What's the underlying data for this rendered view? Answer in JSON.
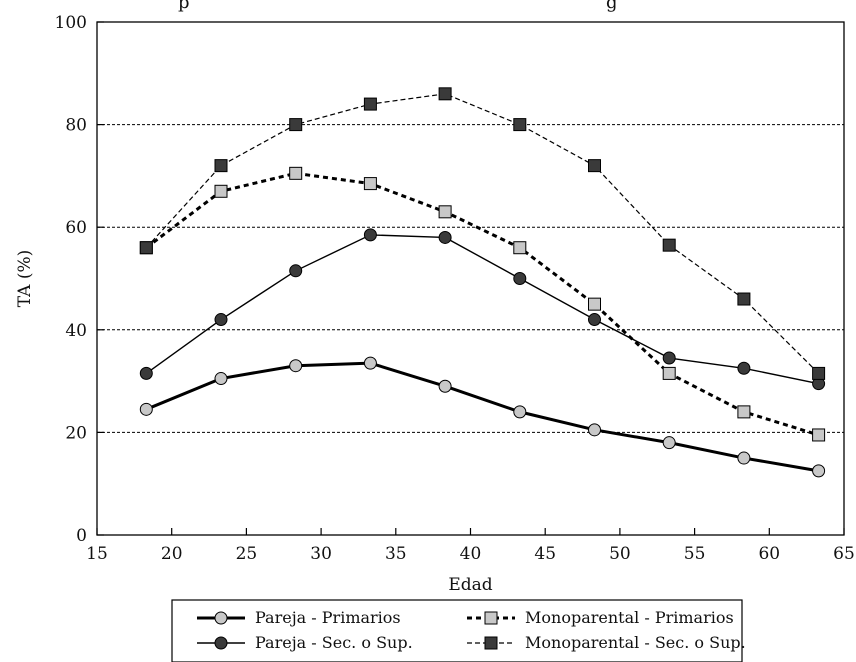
{
  "top_fragment": {
    "left": "p",
    "right": "g"
  },
  "colors": {
    "grid": "#000000",
    "dark_marker": "#3a3a3a",
    "light_marker": "#c8c8c8",
    "line": "#000000"
  },
  "chart_data": {
    "type": "line",
    "title": "",
    "xlabel": "Edad",
    "ylabel": "TA (%)",
    "xlim": [
      15,
      65
    ],
    "ylim": [
      0,
      100
    ],
    "xticks": [
      15,
      20,
      25,
      30,
      35,
      40,
      45,
      50,
      55,
      60,
      65
    ],
    "yticks": [
      0,
      20,
      40,
      60,
      80,
      100
    ],
    "x_tick_labels": [
      "15",
      "20",
      "25",
      "30",
      "35",
      "40",
      "45",
      "50",
      "55",
      "60",
      "65"
    ],
    "y_tick_labels": [
      "0",
      "20",
      "40",
      "60",
      "80",
      "100"
    ],
    "grid": "horizontal dashed at 20, 40, 60, 80",
    "legend_position": "bottom",
    "series": [
      {
        "name": "Pareja - Primarios",
        "x": [
          18.3,
          23.3,
          28.3,
          33.3,
          38.3,
          43.3,
          48.3,
          53.3,
          58.3,
          63.3
        ],
        "y": [
          24.5,
          30.5,
          33.0,
          33.5,
          29.0,
          24.0,
          20.5,
          18.0,
          15.0,
          12.5
        ],
        "line": "solid-thick",
        "marker": "circle",
        "marker_fill": "light"
      },
      {
        "name": "Pareja - Sec. o Sup.",
        "x": [
          18.3,
          23.3,
          28.3,
          33.3,
          38.3,
          43.3,
          48.3,
          53.3,
          58.3,
          63.3
        ],
        "y": [
          31.5,
          42.0,
          51.5,
          58.5,
          58.0,
          50.0,
          42.0,
          34.5,
          32.5,
          29.5
        ],
        "line": "solid-thin",
        "marker": "circle",
        "marker_fill": "dark"
      },
      {
        "name": "Monoparental -  Primarios",
        "x": [
          18.3,
          23.3,
          28.3,
          33.3,
          38.3,
          43.3,
          48.3,
          53.3,
          58.3,
          63.3
        ],
        "y": [
          56.0,
          67.0,
          70.5,
          68.5,
          63.0,
          56.0,
          45.0,
          31.5,
          24.0,
          19.5
        ],
        "line": "dashed-thick",
        "marker": "square",
        "marker_fill": "light"
      },
      {
        "name": "Monoparental - Sec. o Sup.",
        "x": [
          18.3,
          23.3,
          28.3,
          33.3,
          38.3,
          43.3,
          48.3,
          53.3,
          58.3,
          63.3
        ],
        "y": [
          56.0,
          72.0,
          80.0,
          84.0,
          86.0,
          80.0,
          72.0,
          56.5,
          46.0,
          31.5
        ],
        "line": "dashed-thin",
        "marker": "square",
        "marker_fill": "dark"
      }
    ]
  }
}
